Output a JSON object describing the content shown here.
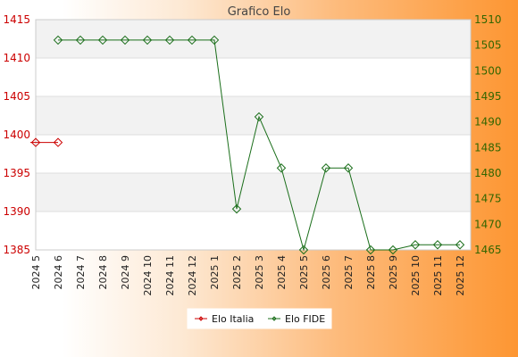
{
  "chart_data": {
    "type": "line",
    "title": "Grafico Elo",
    "categories": [
      "2024 5",
      "2024 6",
      "2024 7",
      "2024 8",
      "2024 9",
      "2024 10",
      "2024 11",
      "2024 12",
      "2025 1",
      "2025 2",
      "2025 3",
      "2025 4",
      "2025 5",
      "2025 6",
      "2025 7",
      "2025 8",
      "2025 9",
      "2025 10",
      "2025 11",
      "2025 12"
    ],
    "left_axis": {
      "ylim": [
        1385,
        1415
      ],
      "ticks": [
        1385,
        1390,
        1395,
        1400,
        1405,
        1410,
        1415
      ],
      "color": "#cc0000"
    },
    "right_axis": {
      "ylim": [
        1465,
        1510
      ],
      "ticks": [
        1465,
        1470,
        1475,
        1480,
        1485,
        1490,
        1495,
        1500,
        1505,
        1510
      ],
      "color": "#336600"
    },
    "grid": true,
    "legend_position": "bottom-center",
    "series": [
      {
        "name": "Elo Italia",
        "axis": "left",
        "color": "#cc0000",
        "values": [
          1399,
          1399,
          null,
          null,
          null,
          null,
          null,
          null,
          null,
          null,
          null,
          null,
          null,
          null,
          null,
          null,
          null,
          null,
          null,
          null
        ]
      },
      {
        "name": "Elo FIDE",
        "axis": "right",
        "color": "#1a6e1a",
        "values": [
          null,
          1506,
          1506,
          1506,
          1506,
          1506,
          1506,
          1506,
          1506,
          1473,
          1491,
          1481,
          1465,
          1481,
          1481,
          1465,
          1465,
          1466,
          1466,
          1466
        ]
      }
    ]
  }
}
